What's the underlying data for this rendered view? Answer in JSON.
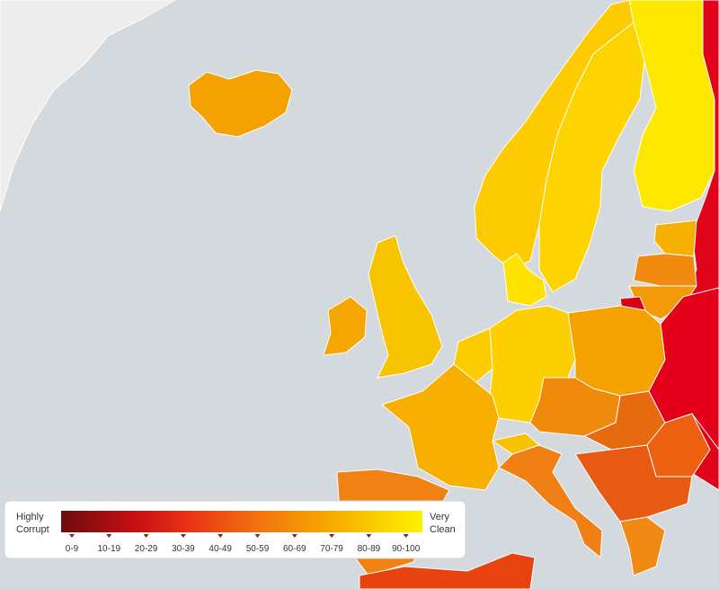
{
  "legend": {
    "low_label": [
      "Highly",
      "Corrupt"
    ],
    "high_label": [
      "Very",
      "Clean"
    ],
    "ranges": [
      "0-9",
      "10-19",
      "20-29",
      "30-39",
      "40-49",
      "50-59",
      "60-69",
      "70-79",
      "80-89",
      "90-100"
    ]
  }
}
